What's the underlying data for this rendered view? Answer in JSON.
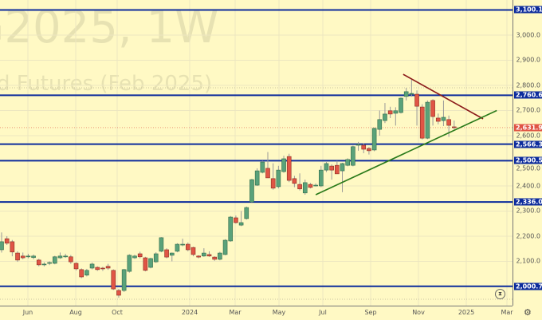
{
  "watermark": {
    "symbol_line": "G2025, 1W",
    "name_line": "d Futures (Feb 2025)"
  },
  "chart_data": {
    "type": "candlestick",
    "x_start": "2023-05-01",
    "interval": "1W",
    "candles_ohlc": [
      [
        2146,
        2215,
        2135,
        2178
      ],
      [
        2190,
        2200,
        2165,
        2172
      ],
      [
        2178,
        2185,
        2120,
        2137
      ],
      [
        2133,
        2140,
        2098,
        2105
      ],
      [
        2121,
        2135,
        2108,
        2114
      ],
      [
        2120,
        2130,
        2112,
        2121
      ],
      [
        2115,
        2127,
        2108,
        2121
      ],
      [
        2105,
        2110,
        2080,
        2086
      ],
      [
        2089,
        2096,
        2080,
        2089
      ],
      [
        2092,
        2100,
        2085,
        2095
      ],
      [
        2092,
        2122,
        2088,
        2118
      ],
      [
        2114,
        2135,
        2110,
        2121
      ],
      [
        2121,
        2130,
        2114,
        2121
      ],
      [
        2118,
        2125,
        2090,
        2098
      ],
      [
        2092,
        2096,
        2064,
        2070
      ],
      [
        2067,
        2072,
        2033,
        2038
      ],
      [
        2045,
        2070,
        2040,
        2064
      ],
      [
        2073,
        2095,
        2068,
        2089
      ],
      [
        2076,
        2080,
        2062,
        2067
      ],
      [
        2073,
        2078,
        2062,
        2070
      ],
      [
        2080,
        2090,
        2066,
        2073
      ],
      [
        2064,
        2068,
        1986,
        1990
      ],
      [
        1984,
        1990,
        1955,
        1965
      ],
      [
        1984,
        2070,
        1978,
        2067
      ],
      [
        2060,
        2128,
        2055,
        2124
      ],
      [
        2114,
        2126,
        2110,
        2121
      ],
      [
        2130,
        2138,
        2112,
        2118
      ],
      [
        2114,
        2118,
        2060,
        2064
      ],
      [
        2076,
        2114,
        2072,
        2111
      ],
      [
        2098,
        2136,
        2094,
        2130
      ],
      [
        2140,
        2196,
        2136,
        2194
      ],
      [
        2146,
        2152,
        2112,
        2117
      ],
      [
        2124,
        2135,
        2100,
        2133
      ],
      [
        2140,
        2172,
        2136,
        2168
      ],
      [
        2168,
        2190,
        2160,
        2168
      ],
      [
        2168,
        2175,
        2140,
        2146
      ],
      [
        2155,
        2158,
        2120,
        2127
      ],
      [
        2121,
        2124,
        2112,
        2117
      ],
      [
        2121,
        2152,
        2118,
        2133
      ],
      [
        2127,
        2140,
        2118,
        2121
      ],
      [
        2117,
        2120,
        2102,
        2108
      ],
      [
        2108,
        2138,
        2104,
        2133
      ],
      [
        2127,
        2188,
        2124,
        2184
      ],
      [
        2181,
        2280,
        2178,
        2276
      ],
      [
        2273,
        2282,
        2250,
        2254
      ],
      [
        2244,
        2300,
        2240,
        2254
      ],
      [
        2270,
        2318,
        2266,
        2314
      ],
      [
        2336,
        2428,
        2332,
        2425
      ],
      [
        2403,
        2470,
        2400,
        2460
      ],
      [
        2454,
        2500,
        2450,
        2495
      ],
      [
        2470,
        2535,
        2432,
        2432
      ],
      [
        2429,
        2490,
        2385,
        2391
      ],
      [
        2397,
        2480,
        2390,
        2463
      ],
      [
        2457,
        2520,
        2452,
        2508
      ],
      [
        2517,
        2528,
        2415,
        2422
      ],
      [
        2429,
        2440,
        2395,
        2410
      ],
      [
        2406,
        2450,
        2382,
        2388
      ],
      [
        2372,
        2425,
        2365,
        2413
      ],
      [
        2406,
        2412,
        2390,
        2394
      ],
      [
        2403,
        2410,
        2398,
        2403
      ],
      [
        2400,
        2480,
        2395,
        2463
      ],
      [
        2463,
        2495,
        2455,
        2489
      ],
      [
        2479,
        2486,
        2425,
        2463
      ],
      [
        2482,
        2500,
        2450,
        2448
      ],
      [
        2460,
        2492,
        2375,
        2489
      ],
      [
        2482,
        2510,
        2478,
        2505
      ],
      [
        2482,
        2560,
        2478,
        2556
      ],
      [
        2565,
        2575,
        2540,
        2565
      ],
      [
        2562,
        2570,
        2530,
        2546
      ],
      [
        2549,
        2555,
        2525,
        2540
      ],
      [
        2543,
        2632,
        2538,
        2629
      ],
      [
        2625,
        2700,
        2600,
        2664
      ],
      [
        2660,
        2730,
        2650,
        2686
      ],
      [
        2699,
        2715,
        2670,
        2686
      ],
      [
        2689,
        2713,
        2640,
        2699
      ],
      [
        2692,
        2752,
        2688,
        2749
      ],
      [
        2756,
        2790,
        2740,
        2775
      ],
      [
        2768,
        2822,
        2755,
        2768
      ],
      [
        2765,
        2780,
        2640,
        2717
      ],
      [
        2714,
        2725,
        2585,
        2590
      ],
      [
        2590,
        2740,
        2586,
        2733
      ],
      [
        2740,
        2745,
        2640,
        2676
      ],
      [
        2670,
        2688,
        2645,
        2657
      ],
      [
        2660,
        2740,
        2638,
        2673
      ],
      [
        2664,
        2680,
        2595,
        2641
      ],
      [
        2635,
        2660,
        2625,
        2632
      ]
    ],
    "y_ticks": [
      "3,000.0",
      "2,900.0",
      "2,800.0",
      "2,700.0",
      "2,600.0",
      "2,500.0",
      "2,400.0",
      "2,300.0",
      "2,200.0",
      "2,100.0"
    ],
    "x_ticks": [
      "Jun",
      "Aug",
      "Oct",
      "2024",
      "Mar",
      "May",
      "Jul",
      "Sep",
      "Nov",
      "2025",
      "Mar"
    ],
    "ylim": [
      1950,
      3130
    ],
    "horizontal_levels": [
      {
        "value": 3100.1,
        "label": "3,100.1"
      },
      {
        "value": 2760.6,
        "label": "2,760.6"
      },
      {
        "value": 2566.3,
        "label": "2,566.3"
      },
      {
        "value": 2500.5,
        "label": "2,500.5"
      },
      {
        "value": 2336.0,
        "label": "2,336.0"
      },
      {
        "value": 2000.7,
        "label": "2,000.7"
      }
    ],
    "current_price": {
      "value": 2631.9,
      "label": "2,631.9"
    },
    "trend_lines": [
      {
        "kind": "resistance",
        "from": {
          "date": "2024-10-10",
          "price": 2844
        },
        "to": {
          "date": "2025-01-23",
          "price": 2667
        }
      },
      {
        "kind": "support",
        "from": {
          "date": "2024-06-17",
          "price": 2365
        },
        "to": {
          "date": "2025-02-10",
          "price": 2700
        }
      }
    ],
    "colors": {
      "up": "#5aa27a",
      "down": "#e05545",
      "level": "#0d2c9c",
      "resistance": "#8b1a1a",
      "support": "#2a7a1a",
      "background": "#fff9c4"
    }
  }
}
